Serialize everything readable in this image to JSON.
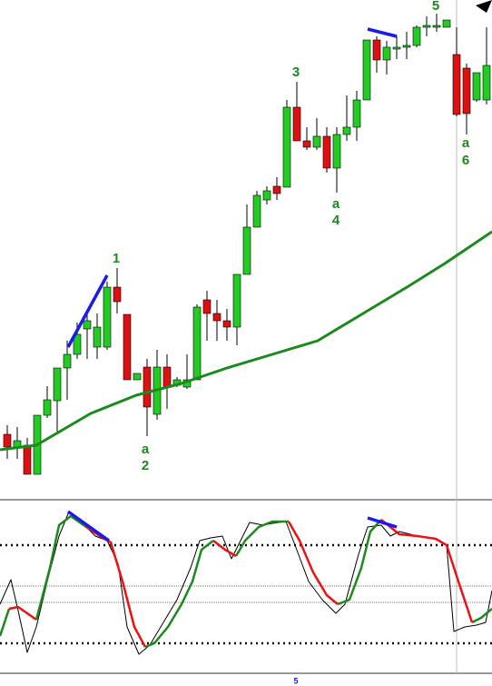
{
  "chart_data": [
    {
      "type": "candlestick",
      "xlim": [
        0,
        542
      ],
      "ylim": [
        0,
        550
      ],
      "up_color": "#22cc22",
      "down_color": "#dd1111",
      "x": [
        8,
        19,
        30,
        41,
        52,
        63,
        74,
        85,
        96,
        107,
        118,
        129,
        140,
        151,
        162,
        173,
        184,
        195,
        206,
        217,
        228,
        239,
        250,
        261,
        272,
        283,
        294,
        305,
        316,
        327,
        338,
        349,
        360,
        371,
        382,
        393,
        404,
        415,
        426,
        437,
        448,
        459,
        470,
        481,
        492,
        503,
        514,
        525,
        536
      ],
      "open": [
        72,
        58,
        60,
        28,
        93,
        109,
        145,
        160,
        188,
        168,
        168,
        234,
        204,
        132,
        146,
        94,
        146,
        126,
        124,
        132,
        220,
        205,
        197,
        190,
        248,
        300,
        330,
        345,
        344,
        432,
        395,
        388,
        400,
        365,
        402,
        410,
        440,
        506,
        484,
        496,
        498,
        500,
        520,
        520,
        520,
        490,
        475,
        440,
        440
      ],
      "high": [
        82,
        80,
        68,
        93,
        125,
        145,
        175,
        195,
        205,
        205,
        240,
        255,
        204,
        139,
        155,
        165,
        160,
        135,
        160,
        215,
        230,
        220,
        210,
        248,
        325,
        340,
        345,
        355,
        440,
        460,
        410,
        420,
        410,
        410,
        445,
        450,
        506,
        510,
        505,
        510,
        515,
        522,
        532,
        535,
        528,
        520,
        480,
        470,
        520
      ],
      "low": [
        45,
        45,
        28,
        28,
        90,
        75,
        110,
        155,
        155,
        155,
        165,
        205,
        132,
        132,
        70,
        88,
        100,
        124,
        122,
        132,
        175,
        175,
        175,
        170,
        248,
        300,
        325,
        330,
        344,
        395,
        385,
        385,
        360,
        338,
        395,
        395,
        440,
        470,
        468,
        485,
        485,
        498,
        510,
        515,
        520,
        422,
        402,
        438,
        435
      ],
      "close": [
        58,
        65,
        28,
        93,
        110,
        145,
        160,
        182,
        197,
        190,
        234,
        218,
        132,
        139,
        102,
        146,
        124,
        132,
        132,
        212,
        205,
        197,
        190,
        248,
        300,
        335,
        340,
        337,
        432,
        395,
        388,
        400,
        365,
        402,
        410,
        440,
        506,
        484,
        498,
        498,
        500,
        520,
        522,
        522,
        528,
        424,
        425,
        470,
        478
      ],
      "overlays": [
        {
          "color": "#1a8a1a",
          "x": [
            0,
            40,
            100,
            150,
            200,
            250,
            300,
            350,
            400,
            450,
            490,
            542
          ],
          "values": [
            55,
            60,
            95,
            115,
            128,
            145,
            160,
            175,
            205,
            235,
            260,
            295
          ]
        }
      ],
      "trend_lines": [
        {
          "color": "#1a1aee",
          "x": [
            75,
            118
          ],
          "values": [
            168,
            247
          ]
        },
        {
          "color": "#1a1aee",
          "x": [
            405,
            437
          ],
          "values": [
            518,
            510
          ]
        }
      ],
      "annotations": [
        {
          "text": "1",
          "x": 128,
          "y": 265,
          "color": "#1a8a1a"
        },
        {
          "text": "a",
          "x": 160,
          "y": 55,
          "color": "#1a8a1a"
        },
        {
          "text": "2",
          "x": 160,
          "y": 37,
          "color": "#1a8a1a"
        },
        {
          "text": "3",
          "x": 326,
          "y": 470,
          "color": "#1a8a1a"
        },
        {
          "text": "a",
          "x": 370,
          "y": 325,
          "color": "#1a8a1a"
        },
        {
          "text": "4",
          "x": 370,
          "y": 307,
          "color": "#1a8a1a"
        },
        {
          "text": "5",
          "x": 480,
          "y": 543,
          "color": "#1a8a1a"
        },
        {
          "text": "a",
          "x": 513,
          "y": 392,
          "color": "#1a8a1a"
        },
        {
          "text": "6",
          "x": 513,
          "y": 373,
          "color": "#1a8a1a"
        }
      ]
    },
    {
      "type": "line",
      "xlim": [
        0,
        542
      ],
      "ylim": [
        0,
        190
      ],
      "dotted_levels": [
        144,
        36
      ],
      "thin_levels": [
        99,
        81
      ],
      "series": [
        {
          "color": "#000000",
          "x": [
            0,
            12,
            20,
            30,
            40,
            52,
            65,
            76,
            90,
            105,
            118,
            130,
            140,
            153,
            165,
            180,
            195,
            210,
            220,
            232,
            245,
            255,
            265,
            275,
            290,
            300,
            315,
            325,
            340,
            355,
            370,
            380,
            395,
            405,
            420,
            430,
            440,
            460,
            480,
            492,
            500,
            512,
            525,
            535,
            542
          ],
          "values": [
            79,
            106,
            72,
            26,
            54,
            104,
            154,
            181,
            169,
            154,
            149,
            124,
            54,
            24,
            34,
            59,
            84,
            119,
            149,
            152,
            154,
            129,
            149,
            169,
            166,
            168,
            170,
            144,
            104,
            84,
            69,
            79,
            134,
            164,
            166,
            154,
            159,
            154,
            151,
            144,
            49,
            54,
            56,
            59,
            94
          ]
        },
        {
          "color": "#1a8a1a",
          "x": [
            0,
            10,
            20,
            40,
            55,
            65,
            78,
            95,
            110,
            122,
            135,
            148,
            160,
            170,
            185,
            200,
            212,
            222,
            235,
            248,
            260,
            270,
            285,
            300,
            318,
            330,
            345,
            360,
            372,
            385,
            398,
            408,
            420,
            440,
            460,
            480,
            492,
            505,
            520,
            530,
            542
          ],
          "values": [
            44,
            74,
            null,
            62,
            119,
            166,
            176,
            164,
            null,
            null,
            null,
            null,
            32,
            36,
            54,
            79,
            104,
            139,
            149,
            null,
            132,
            149,
            164,
            170,
            170,
            null,
            null,
            null,
            79,
            84,
            119,
            159,
            172,
            null,
            null,
            null,
            null,
            null,
            59,
            64,
            74
          ]
        },
        {
          "color": "#ee1111",
          "x": [
            0,
            10,
            20,
            40,
            55,
            65,
            78,
            95,
            110,
            122,
            135,
            148,
            160,
            170,
            185,
            200,
            212,
            222,
            235,
            248,
            260,
            270,
            285,
            300,
            318,
            330,
            345,
            360,
            372,
            385,
            398,
            408,
            420,
            440,
            460,
            480,
            492,
            505,
            520,
            530,
            542
          ],
          "values": [
            null,
            74,
            76,
            62,
            null,
            null,
            null,
            164,
            154,
            147,
            104,
            54,
            32,
            null,
            null,
            null,
            null,
            null,
            149,
            139,
            132,
            null,
            null,
            null,
            170,
            149,
            114,
            89,
            79,
            null,
            null,
            null,
            172,
            156,
            154,
            151,
            144,
            104,
            59,
            null,
            null
          ]
        }
      ],
      "trend_lines": [
        {
          "color": "#1a1aee",
          "x": [
            75,
            120
          ],
          "values": [
            181,
            149
          ]
        },
        {
          "color": "#1a1aee",
          "x": [
            405,
            437
          ],
          "values": [
            174,
            164
          ]
        }
      ],
      "annotations": [
        {
          "text": "5",
          "x": 326,
          "y": -6,
          "color": "#1a1aee"
        }
      ]
    }
  ],
  "cursor_x": 503
}
